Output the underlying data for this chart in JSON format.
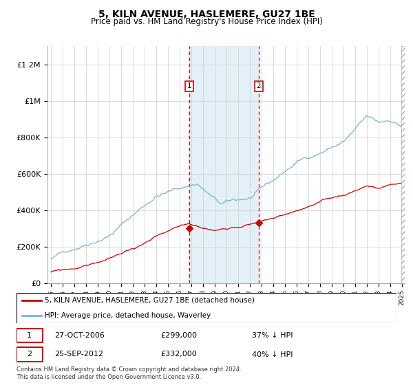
{
  "title": "5, KILN AVENUE, HASLEMERE, GU27 1BE",
  "subtitle": "Price paid vs. HM Land Registry's House Price Index (HPI)",
  "hpi_color": "#7ab3d4",
  "price_color": "#cc0000",
  "ylim": [
    0,
    1300000
  ],
  "yticks": [
    0,
    200000,
    400000,
    600000,
    800000,
    1000000,
    1200000
  ],
  "ytick_labels": [
    "£0",
    "£200K",
    "£400K",
    "£600K",
    "£800K",
    "£1M",
    "£1.2M"
  ],
  "sale1_date": "27-OCT-2006",
  "sale1_price": 299000,
  "sale1_label": "£299,000",
  "sale1_pct": "37% ↓ HPI",
  "sale1_year": 2006.833,
  "sale2_date": "25-SEP-2012",
  "sale2_price": 332000,
  "sale2_label": "£332,000",
  "sale2_pct": "40% ↓ HPI",
  "sale2_year": 2012.75,
  "legend_line1": "5, KILN AVENUE, HASLEMERE, GU27 1BE (detached house)",
  "legend_line2": "HPI: Average price, detached house, Waverley",
  "footnote": "Contains HM Land Registry data © Crown copyright and database right 2024.\nThis data is licensed under the Open Government Licence v3.0.",
  "hpi_seed": 42,
  "price_seed": 99,
  "xmin": 1995.0,
  "xmax": 2025.2
}
